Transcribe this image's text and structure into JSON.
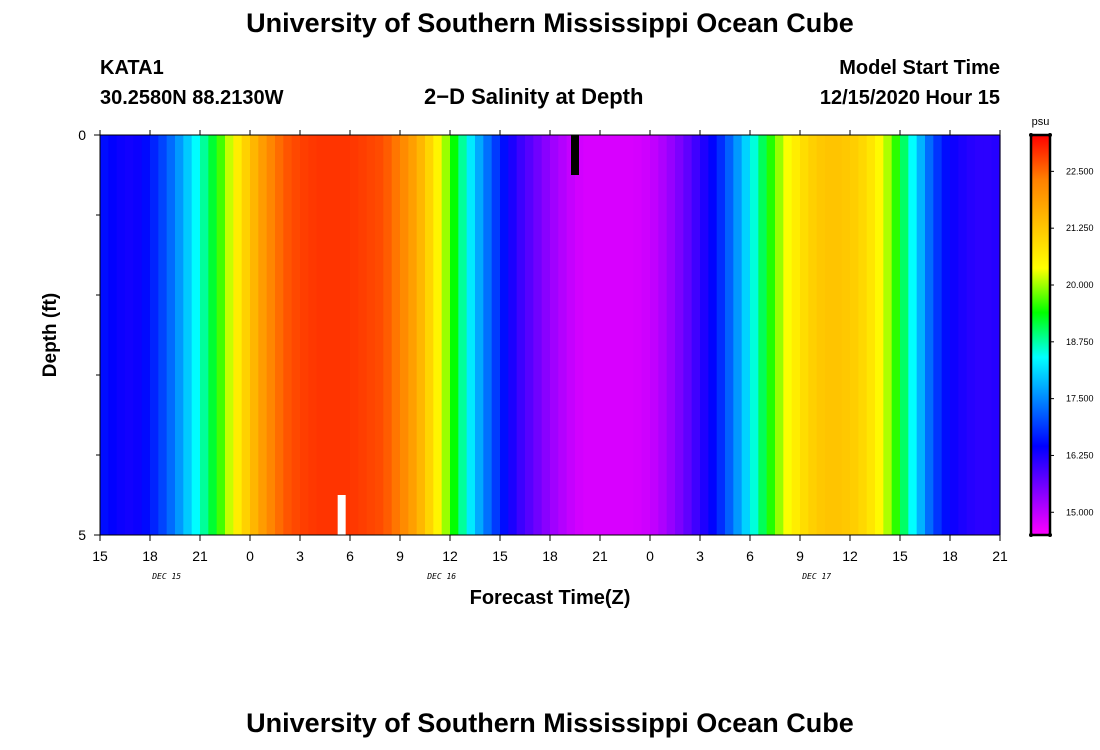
{
  "header": {
    "title": "University of Southern Mississippi Ocean Cube",
    "station": "KATA1",
    "coords": "30.2580N 88.2130W",
    "plot_title": "2−D Salinity at Depth",
    "model_label": "Model Start Time",
    "model_time": "12/15/2020 Hour 15"
  },
  "footer": {
    "title": "University of Southern Mississippi Ocean Cube"
  },
  "colors": {
    "marker_top": "#000000",
    "marker_bottom": "#ffffff",
    "frame": "#000000"
  },
  "chart_data": {
    "type": "heatmap",
    "title": "2−D Salinity at Depth",
    "xlabel": "Forecast Time(Z)",
    "ylabel": "Depth (ft)",
    "x_ticks": [
      "15",
      "18",
      "21",
      "0",
      "3",
      "6",
      "9",
      "12",
      "15",
      "18",
      "21",
      "0",
      "3",
      "6",
      "9",
      "12",
      "15",
      "18",
      "21"
    ],
    "date_labels": [
      {
        "label": "DEC 15",
        "at_hour": 4
      },
      {
        "label": "DEC 16",
        "at_hour": 20.5
      },
      {
        "label": "DEC 17",
        "at_hour": 43
      }
    ],
    "x_range_hours": [
      0,
      54
    ],
    "y_ticks": [
      "0",
      "5"
    ],
    "ylim": [
      0,
      5
    ],
    "y_minor_ticks": [
      1,
      2,
      3,
      4
    ],
    "colorbar": {
      "unit": "psu",
      "range": [
        14.5,
        23.3
      ],
      "ticks": [
        "15.000",
        "16.250",
        "17.500",
        "18.750",
        "20.000",
        "21.250",
        "22.500"
      ],
      "tick_values": [
        15.0,
        16.25,
        17.5,
        18.75,
        20.0,
        21.25,
        22.5
      ],
      "colors": [
        "#ff00ff",
        "#8000ff",
        "#0000ff",
        "#0080ff",
        "#00ffff",
        "#00ff00",
        "#ffff00",
        "#ffc000",
        "#ff8000",
        "#ff0000"
      ]
    },
    "hours": [
      0,
      1,
      2,
      3,
      4,
      5,
      6,
      7,
      8,
      9,
      10,
      11,
      12,
      13,
      14,
      15,
      16,
      17,
      18,
      19,
      20,
      21,
      22,
      23,
      24,
      25,
      26,
      27,
      28,
      29,
      30,
      31,
      32,
      33,
      34,
      35,
      36,
      37,
      38,
      39,
      40,
      41,
      42,
      43,
      44,
      45,
      46,
      47,
      48,
      49,
      50,
      51,
      52,
      53,
      54
    ],
    "salinity": [
      16.6,
      16.4,
      16.3,
      16.6,
      17.1,
      17.8,
      18.6,
      19.4,
      20.4,
      21.3,
      22.1,
      22.6,
      22.8,
      22.9,
      22.9,
      22.9,
      22.8,
      22.7,
      22.3,
      21.7,
      20.8,
      19.7,
      18.5,
      17.5,
      16.7,
      16.1,
      15.7,
      15.3,
      15.0,
      14.8,
      14.8,
      14.8,
      14.8,
      14.9,
      15.2,
      15.6,
      16.1,
      16.6,
      17.4,
      18.3,
      19.3,
      20.2,
      20.8,
      21.2,
      21.3,
      21.2,
      20.9,
      20.3,
      19.3,
      18.1,
      17.0,
      16.4,
      16.2,
      16.1,
      16.2
    ],
    "markers": [
      {
        "label": "top",
        "hour": 28.5,
        "depth_from": 0,
        "depth_to": 0.5
      },
      {
        "label": "bottom",
        "hour": 14.5,
        "depth_from": 4.5,
        "depth_to": 5
      }
    ]
  }
}
